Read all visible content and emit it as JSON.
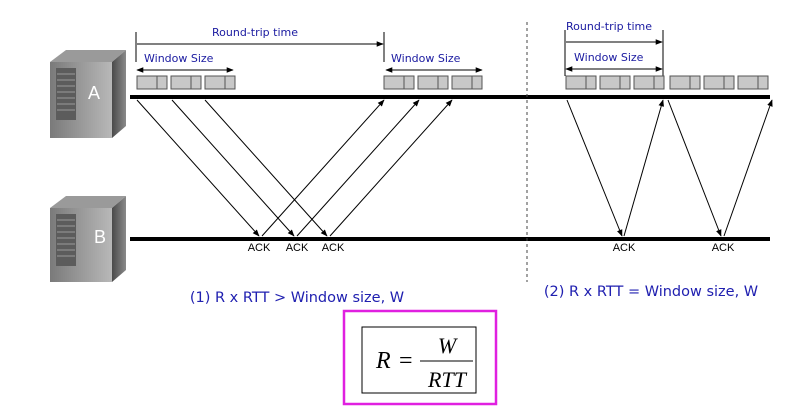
{
  "hosts": {
    "a": "A",
    "b": "B"
  },
  "left": {
    "rtt_label": "Round-trip time",
    "window_label_1": "Window Size",
    "window_label_2": "Window Size",
    "acks": [
      "ACK",
      "ACK",
      "ACK"
    ],
    "condition": "(1) R x RTT > Window size, W"
  },
  "right": {
    "rtt_label": "Round-trip time",
    "window_label": "Window Size",
    "acks": [
      "ACK",
      "ACK"
    ],
    "condition": "(2) R x RTT = Window size, W"
  },
  "formula": {
    "lhs": "R",
    "equals": "=",
    "numerator": "W",
    "denominator": "RTT"
  },
  "colors": {
    "label_text": "#1a1aa0",
    "condition_text": "#2020b0",
    "formula_border": "#e020e0",
    "packet_fill": "#c8c8c8"
  }
}
